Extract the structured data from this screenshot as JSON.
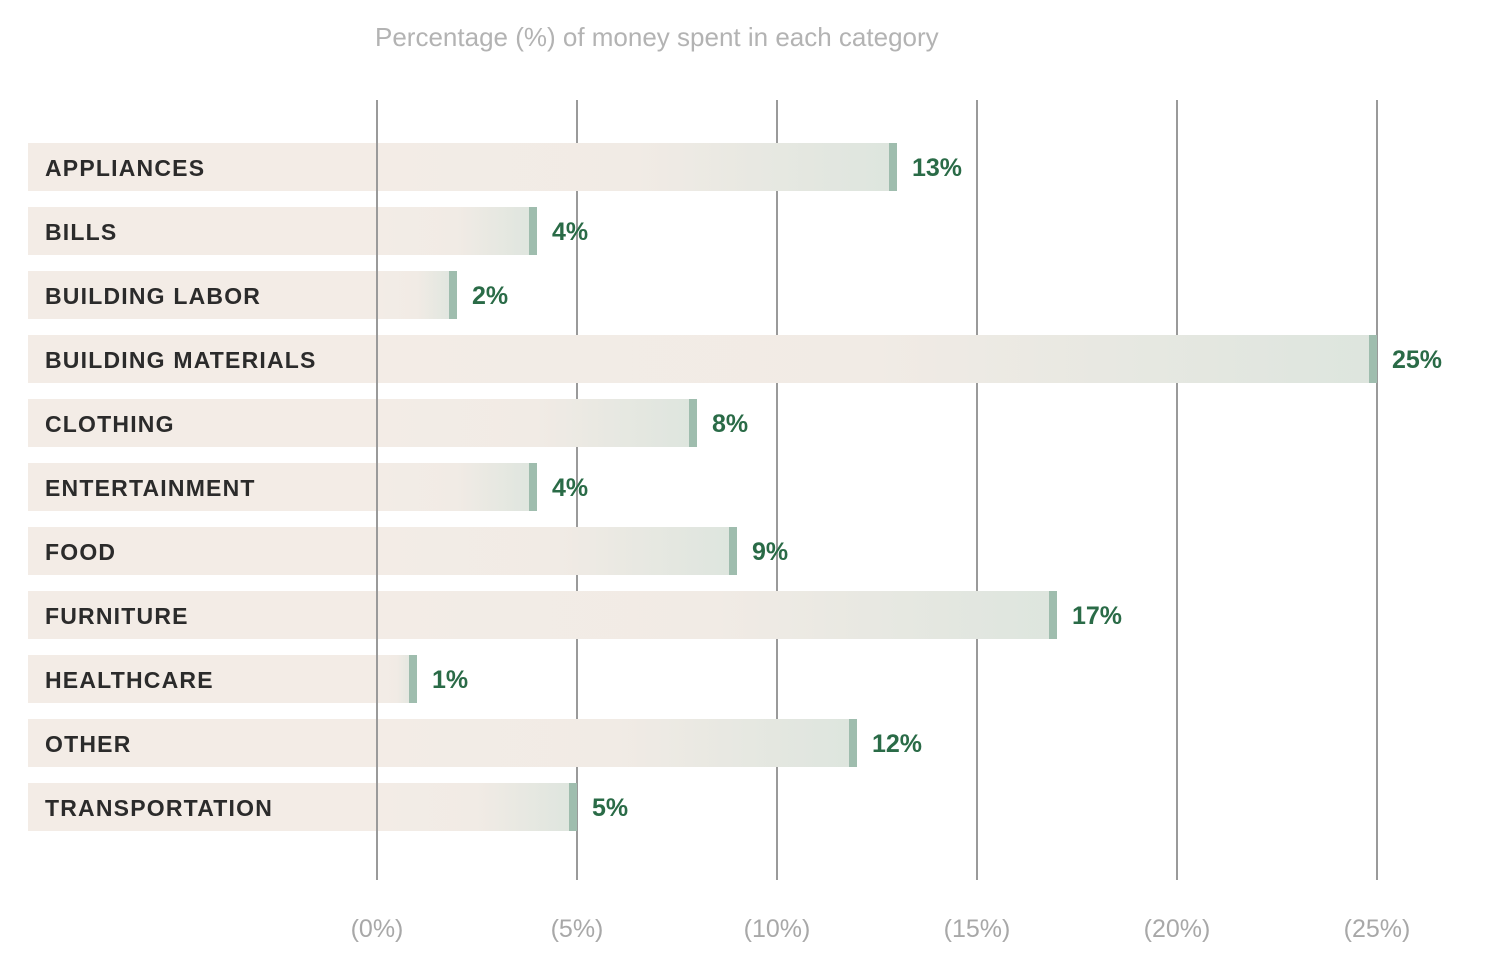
{
  "chart_data": {
    "type": "bar",
    "orientation": "horizontal",
    "title": "Percentage (%) of money spent in each category",
    "xlabel": "",
    "ylabel": "",
    "xlim": [
      0,
      25
    ],
    "grid": true,
    "x_ticks": [
      "(0%)",
      "(5%)",
      "(10%)",
      "(15%)",
      "(20%)",
      "(25%)"
    ],
    "x_tick_values": [
      0,
      5,
      10,
      15,
      20,
      25
    ],
    "categories": [
      "APPLIANCES",
      "BILLS",
      "BUILDING LABOR",
      "BUILDING MATERIALS",
      "CLOTHING",
      "ENTERTAINMENT",
      "FOOD",
      "FURNITURE",
      "HEALTHCARE",
      "OTHER",
      "TRANSPORTATION"
    ],
    "values": [
      13,
      4,
      2,
      25,
      8,
      4,
      9,
      17,
      1,
      12,
      5
    ],
    "data_labels": [
      "13%",
      "4%",
      "2%",
      "25%",
      "8%",
      "4%",
      "9%",
      "17%",
      "1%",
      "12%",
      "5%"
    ],
    "colors": {
      "band": "#f3ece6",
      "bar_end": "#dde5de",
      "cap": "#9fbdae",
      "label": "#2a6b47",
      "grid": "#9a9a9a"
    }
  }
}
